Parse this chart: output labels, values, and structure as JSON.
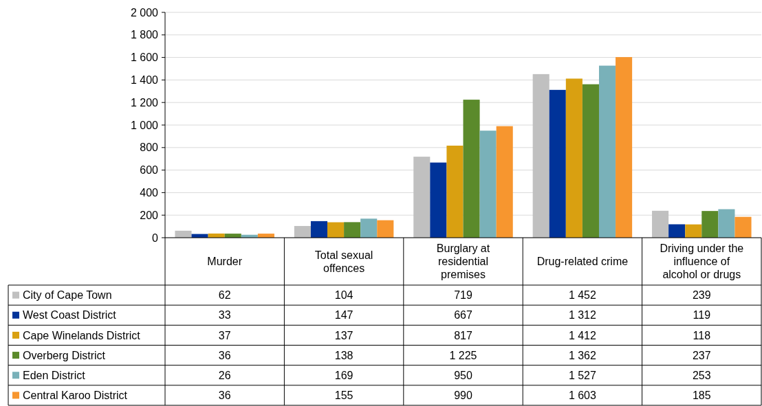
{
  "chart_data": {
    "type": "bar",
    "categories": [
      "Murder",
      "Total sexual offences",
      "Burglary at residential premises",
      "Drug-related crime",
      "Driving under the influence of alcohol or drugs"
    ],
    "series": [
      {
        "name": "City of Cape Town",
        "color": "#c0c0c0",
        "values": [
          62,
          104,
          719,
          1452,
          239
        ],
        "value_labels": [
          "62",
          "104",
          "719",
          "1 452",
          "239"
        ]
      },
      {
        "name": "West Coast District",
        "color": "#003399",
        "values": [
          33,
          147,
          667,
          1312,
          119
        ],
        "value_labels": [
          "33",
          "147",
          "667",
          "1 312",
          "119"
        ]
      },
      {
        "name": "Cape Winelands District",
        "color": "#d9a011",
        "values": [
          37,
          137,
          817,
          1412,
          118
        ],
        "value_labels": [
          "37",
          "137",
          "817",
          "1 412",
          "118"
        ]
      },
      {
        "name": "Overberg District",
        "color": "#5b8a2b",
        "values": [
          36,
          138,
          1225,
          1362,
          237
        ],
        "value_labels": [
          "36",
          "138",
          "1 225",
          "1 362",
          "237"
        ]
      },
      {
        "name": "Eden District",
        "color": "#79b1b9",
        "values": [
          26,
          169,
          950,
          1527,
          253
        ],
        "value_labels": [
          "26",
          "169",
          "950",
          "1 527",
          "253"
        ]
      },
      {
        "name": "Central Karoo District",
        "color": "#f7962f",
        "values": [
          36,
          155,
          990,
          1603,
          185
        ],
        "value_labels": [
          "36",
          "155",
          "990",
          "1 603",
          "185"
        ]
      }
    ],
    "ylim": [
      0,
      2000
    ],
    "yticks": [
      0,
      {
        "value": 200,
        "label": "200"
      },
      {
        "value": 400,
        "label": "400"
      },
      {
        "value": 600,
        "label": "600"
      },
      {
        "value": 800,
        "label": "800"
      },
      {
        "value": 1000,
        "label": "1 000"
      },
      {
        "value": 1200,
        "label": "1 200"
      },
      {
        "value": 1400,
        "label": "1 400"
      },
      {
        "value": 1600,
        "label": "1 600"
      },
      {
        "value": 1800,
        "label": "1 800"
      },
      {
        "value": 2000,
        "label": "2 000"
      }
    ],
    "grid": "y",
    "legend": "bottom"
  }
}
